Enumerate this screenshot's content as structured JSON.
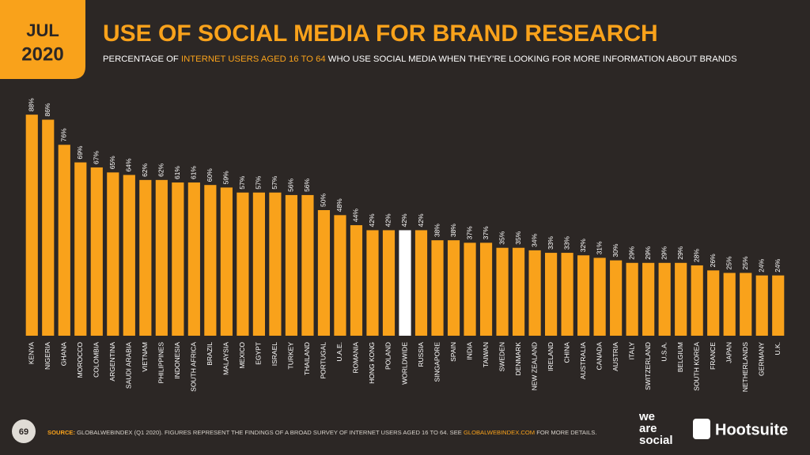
{
  "header": {
    "month": "JUL",
    "year": "2020",
    "title": "USE OF SOCIAL MEDIA FOR BRAND RESEARCH",
    "subtitle_parts": [
      "PERCENTAGE OF ",
      "INTERNET USERS AGED 16 TO 64",
      " WHO USE SOCIAL MEDIA WHEN THEY’RE LOOKING FOR MORE INFORMATION ABOUT BRANDS"
    ]
  },
  "chart_data": {
    "type": "bar",
    "categories": [
      "KENYA",
      "NIGERIA",
      "GHANA",
      "MOROCCO",
      "COLOMBIA",
      "ARGENTINA",
      "SAUDI ARABIA",
      "VIETNAM",
      "PHILIPPINES",
      "INDONESIA",
      "SOUTH AFRICA",
      "BRAZIL",
      "MALAYSIA",
      "MEXICO",
      "EGYPT",
      "ISRAEL",
      "TURKEY",
      "THAILAND",
      "PORTUGAL",
      "U.A.E.",
      "ROMANIA",
      "HONG KONG",
      "POLAND",
      "WORLDWIDE",
      "RUSSIA",
      "SINGAPORE",
      "SPAIN",
      "INDIA",
      "TAIWAN",
      "SWEDEN",
      "DENMARK",
      "NEW ZEALAND",
      "IRELAND",
      "CHINA",
      "AUSTRALIA",
      "CANADA",
      "AUSTRIA",
      "ITALY",
      "SWITZERLAND",
      "U.S.A.",
      "BELGIUM",
      "SOUTH KOREA",
      "FRANCE",
      "JAPAN",
      "NETHERLANDS",
      "GERMANY",
      "U.K."
    ],
    "values": [
      88,
      86,
      76,
      69,
      67,
      65,
      64,
      62,
      62,
      61,
      61,
      60,
      59,
      57,
      57,
      57,
      56,
      56,
      50,
      48,
      44,
      42,
      42,
      42,
      42,
      38,
      38,
      37,
      37,
      35,
      35,
      34,
      33,
      33,
      32,
      31,
      30,
      29,
      29,
      29,
      29,
      28,
      26,
      25,
      25,
      24,
      24
    ],
    "value_labels": [
      "88%",
      "86%",
      "76%",
      "69%",
      "67%",
      "65%",
      "64%",
      "62%",
      "62%",
      "61%",
      "61%",
      "60%",
      "59%",
      "57%",
      "57%",
      "57%",
      "56%",
      "56%",
      "50%",
      "48%",
      "44%",
      "42%",
      "42%",
      "42%",
      "42%",
      "38%",
      "38%",
      "37%",
      "37%",
      "35%",
      "35%",
      "34%",
      "33%",
      "33%",
      "32%",
      "31%",
      "30%",
      "29%",
      "29%",
      "29%",
      "29%",
      "28%",
      "26%",
      "25%",
      "25%",
      "24%",
      "24%"
    ],
    "colors": [
      "#f9a21b",
      "#f9a21b",
      "#f9a21b",
      "#f9a21b",
      "#f9a21b",
      "#f9a21b",
      "#f9a21b",
      "#f9a21b",
      "#f9a21b",
      "#f9a21b",
      "#f9a21b",
      "#f9a21b",
      "#f9a21b",
      "#f9a21b",
      "#f9a21b",
      "#f9a21b",
      "#f9a21b",
      "#f9a21b",
      "#f9a21b",
      "#f9a21b",
      "#f9a21b",
      "#f9a21b",
      "#f9a21b",
      "#ffffff",
      "#f9a21b",
      "#f9a21b",
      "#f9a21b",
      "#f9a21b",
      "#f9a21b",
      "#f9a21b",
      "#f9a21b",
      "#f9a21b",
      "#f9a21b",
      "#f9a21b",
      "#f9a21b",
      "#f9a21b",
      "#f9a21b",
      "#f9a21b",
      "#f9a21b",
      "#f9a21b",
      "#f9a21b",
      "#f9a21b",
      "#f9a21b",
      "#f9a21b",
      "#f9a21b",
      "#f9a21b",
      "#f9a21b"
    ]
  },
  "footer": {
    "page": "69",
    "source_parts": [
      "SOURCE:",
      " GLOBALWEBINDEX (Q1 2020). FIGURES REPRESENT THE FINDINGS OF A BROAD SURVEY OF INTERNET USERS AGED 16 TO 64. SEE ",
      "GLOBALWEBINDEX.COM",
      " FOR MORE DETAILS."
    ],
    "logo_we": [
      "we",
      "are",
      "social"
    ],
    "logo_hootsuite": "Hootsuite"
  }
}
